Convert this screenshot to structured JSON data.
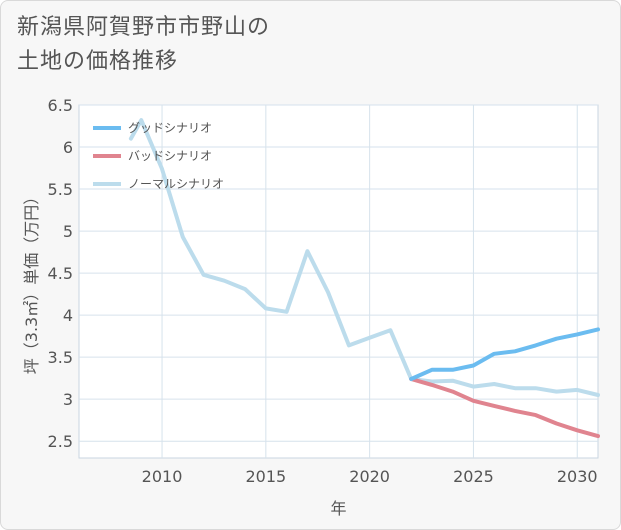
{
  "title": "新潟県阿賀野市市野山の\n土地の価格推移",
  "chart_data": {
    "type": "line",
    "xlabel": "年",
    "ylabel": "坪（3.3㎡）単価（万円）",
    "xlim": [
      2006,
      2031
    ],
    "ylim": [
      2.3,
      6.5
    ],
    "xticks": [
      2010,
      2015,
      2020,
      2025,
      2030
    ],
    "yticks": [
      2.5,
      3,
      3.5,
      4,
      4.5,
      5,
      5.5,
      6,
      6.5
    ],
    "ytick_labels": [
      "2.5",
      "3",
      "3.5",
      "4",
      "4.5",
      "5",
      "5.5",
      "6",
      "6.5"
    ],
    "grid": true,
    "legend_position": "top-left",
    "series": [
      {
        "name": "グッドシナリオ",
        "color": "#6bbcf0",
        "x": [
          2022,
          2023,
          2024,
          2025,
          2026,
          2027,
          2028,
          2029,
          2030,
          2031
        ],
        "y": [
          3.24,
          3.35,
          3.35,
          3.4,
          3.54,
          3.57,
          3.64,
          3.72,
          3.77,
          3.83
        ]
      },
      {
        "name": "バッドシナリオ",
        "color": "#e0848f",
        "x": [
          2022,
          2023,
          2024,
          2025,
          2026,
          2027,
          2028,
          2029,
          2030,
          2031
        ],
        "y": [
          3.24,
          3.17,
          3.09,
          2.98,
          2.92,
          2.86,
          2.81,
          2.71,
          2.63,
          2.56
        ]
      },
      {
        "name": "ノーマルシナリオ",
        "color": "#bcdcec",
        "x": [
          2008.5,
          2009,
          2010,
          2011,
          2012,
          2013,
          2014,
          2015,
          2016,
          2017,
          2018,
          2019,
          2020,
          2021,
          2022,
          2023,
          2024,
          2025,
          2026,
          2027,
          2028,
          2029,
          2030,
          2031
        ],
        "y": [
          6.1,
          6.32,
          5.74,
          4.93,
          4.48,
          4.41,
          4.31,
          4.08,
          4.04,
          4.76,
          4.27,
          3.64,
          3.73,
          3.82,
          3.24,
          3.21,
          3.22,
          3.15,
          3.18,
          3.13,
          3.13,
          3.09,
          3.11,
          3.05
        ]
      }
    ]
  }
}
